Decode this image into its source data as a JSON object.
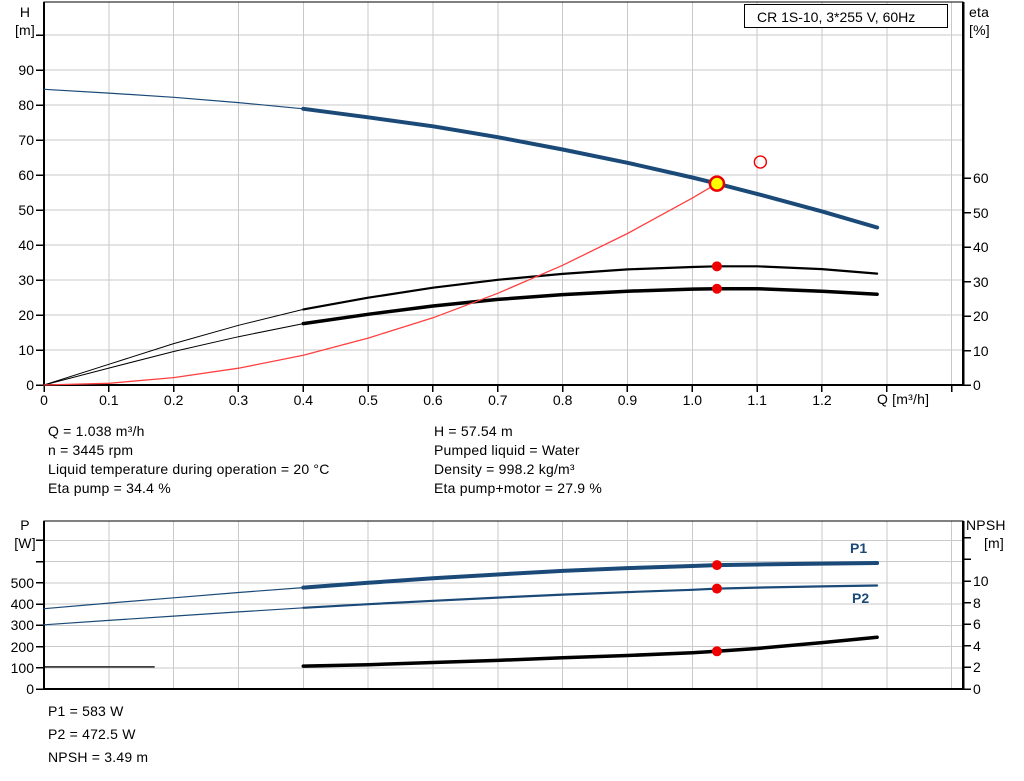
{
  "title_box": {
    "label": "CR 1S-10, 3*255 V, 60Hz"
  },
  "top_chart": {
    "y_left_name": "H",
    "y_left_unit": "[m]",
    "y_right_name": "eta",
    "y_right_unit": "[%]",
    "x_unit_label": "Q [m³/h]"
  },
  "bottom_chart": {
    "y_left_name": "P",
    "y_left_unit": "[W]",
    "y_right_name": "NPSH",
    "y_right_unit": "[m]",
    "p1_label": "P1",
    "p2_label": "P2"
  },
  "info": {
    "q": "Q = 1.038 m³/h",
    "n": "n = 3445 rpm",
    "liquid_temp": "Liquid temperature during operation = 20 °C",
    "eta_pump": "Eta pump = 34.4 %",
    "h": "H = 57.54 m",
    "pumped_liquid": "Pumped liquid = Water",
    "density": "Density = 998.2 kg/m³",
    "eta_pump_motor": "Eta pump+motor = 27.9 %"
  },
  "power_info": {
    "p1": "P1 = 583 W",
    "p2": "P2 = 472.5 W",
    "npsh": "NPSH = 3.49 m"
  },
  "colors": {
    "curve_blue": "#1b4a78",
    "curve_black": "#000000",
    "curve_red": "#ff4040",
    "marker_red": "#ee0000",
    "marker_yellow": "#ffff00",
    "grid": "#c9c9c9",
    "text": "#000000"
  },
  "chart_data": [
    {
      "type": "line",
      "name": "head-efficiency-chart",
      "title": "CR 1S-10, 3*255 V, 60Hz",
      "xlabel": "Q [m³/h]",
      "x_range": [
        0,
        1.417
      ],
      "grid": true,
      "x_ticks": [
        {
          "v": 0,
          "l": "0"
        },
        {
          "v": 0.1,
          "l": "0.1"
        },
        {
          "v": 0.2,
          "l": "0.2"
        },
        {
          "v": 0.3,
          "l": "0.3"
        },
        {
          "v": 0.4,
          "l": "0.4"
        },
        {
          "v": 0.5,
          "l": "0.5"
        },
        {
          "v": 0.6,
          "l": "0.6"
        },
        {
          "v": 0.7,
          "l": "0.7"
        },
        {
          "v": 0.8,
          "l": "0.8"
        },
        {
          "v": 0.9,
          "l": "0.9"
        },
        {
          "v": 1.0,
          "l": "1.0"
        },
        {
          "v": 1.1,
          "l": "1.1"
        },
        {
          "v": 1.2,
          "l": "1.2"
        },
        {
          "v": 1.3,
          "l": ""
        },
        {
          "v": 1.4,
          "l": ""
        }
      ],
      "y_left": {
        "label": "H [m]",
        "range": [
          0,
          107.7
        ],
        "ticks": [
          {
            "v": 0,
            "l": "0"
          },
          {
            "v": 10,
            "l": "10"
          },
          {
            "v": 20,
            "l": "20"
          },
          {
            "v": 30,
            "l": "30"
          },
          {
            "v": 40,
            "l": "40"
          },
          {
            "v": 50,
            "l": "50"
          },
          {
            "v": 60,
            "l": "60"
          },
          {
            "v": 70,
            "l": "70"
          },
          {
            "v": 80,
            "l": "80"
          },
          {
            "v": 90,
            "l": "90"
          },
          {
            "v": 100,
            "l": ""
          }
        ]
      },
      "y_right": {
        "label": "eta [%]",
        "range": [
          0,
          111
        ],
        "ticks": [
          {
            "v": 0,
            "l": "0"
          },
          {
            "v": 10,
            "l": "10"
          },
          {
            "v": 20,
            "l": "20"
          },
          {
            "v": 30,
            "l": "30"
          },
          {
            "v": 40,
            "l": "40"
          },
          {
            "v": 50,
            "l": "50"
          },
          {
            "v": 60,
            "l": "60"
          }
        ]
      },
      "series": [
        {
          "name": "head-curve-extension",
          "axis": "left",
          "color": "blue",
          "width": 1.2,
          "points": [
            [
              0,
              84.5
            ],
            [
              0.1,
              83.4
            ],
            [
              0.2,
              82.2
            ],
            [
              0.3,
              80.7
            ],
            [
              0.4,
              78.9
            ]
          ]
        },
        {
          "name": "head-curve",
          "axis": "left",
          "color": "blue",
          "width": 4,
          "points": [
            [
              0.4,
              78.9
            ],
            [
              0.5,
              76.5
            ],
            [
              0.6,
              73.9
            ],
            [
              0.7,
              70.8
            ],
            [
              0.8,
              67.3
            ],
            [
              0.9,
              63.5
            ],
            [
              1.0,
              59.3
            ],
            [
              1.038,
              57.54
            ],
            [
              1.1,
              54.6
            ],
            [
              1.2,
              49.6
            ],
            [
              1.285,
              45.0
            ]
          ]
        },
        {
          "name": "eta-pump-curve-extension",
          "axis": "right",
          "color": "black",
          "width": 1,
          "points": [
            [
              0,
              0
            ],
            [
              0.1,
              6.0
            ],
            [
              0.2,
              12.0
            ],
            [
              0.3,
              17.3
            ],
            [
              0.4,
              21.9
            ]
          ]
        },
        {
          "name": "eta-pump-curve",
          "axis": "right",
          "color": "black",
          "width": 2.2,
          "points": [
            [
              0.4,
              21.9
            ],
            [
              0.5,
              25.3
            ],
            [
              0.6,
              28.2
            ],
            [
              0.7,
              30.5
            ],
            [
              0.8,
              32.2
            ],
            [
              0.9,
              33.5
            ],
            [
              1.0,
              34.2
            ],
            [
              1.038,
              34.4
            ],
            [
              1.1,
              34.4
            ],
            [
              1.2,
              33.6
            ],
            [
              1.285,
              32.3
            ]
          ]
        },
        {
          "name": "eta-pump-motor-curve-extension",
          "axis": "right",
          "color": "black",
          "width": 1,
          "points": [
            [
              0,
              0
            ],
            [
              0.1,
              4.9
            ],
            [
              0.2,
              9.7
            ],
            [
              0.3,
              14.0
            ],
            [
              0.4,
              17.8
            ]
          ]
        },
        {
          "name": "eta-pump-motor-curve",
          "axis": "right",
          "color": "black",
          "width": 3.5,
          "points": [
            [
              0.4,
              17.8
            ],
            [
              0.5,
              20.5
            ],
            [
              0.6,
              22.9
            ],
            [
              0.7,
              24.8
            ],
            [
              0.8,
              26.2
            ],
            [
              0.9,
              27.2
            ],
            [
              1.0,
              27.8
            ],
            [
              1.038,
              27.9
            ],
            [
              1.1,
              27.9
            ],
            [
              1.2,
              27.2
            ],
            [
              1.285,
              26.3
            ]
          ]
        },
        {
          "name": "system-curve",
          "axis": "left",
          "color": "red",
          "width": 1.3,
          "points": [
            [
              0,
              0
            ],
            [
              0.1,
              0.5
            ],
            [
              0.2,
              2.1
            ],
            [
              0.3,
              4.8
            ],
            [
              0.4,
              8.5
            ],
            [
              0.5,
              13.4
            ],
            [
              0.6,
              19.2
            ],
            [
              0.7,
              26.2
            ],
            [
              0.8,
              34.2
            ],
            [
              0.9,
              43.3
            ],
            [
              1.0,
              53.4
            ],
            [
              1.038,
              57.54
            ]
          ]
        }
      ],
      "markers": [
        {
          "type": "duty-point",
          "axis": "left",
          "q": 1.038,
          "v": 57.54
        },
        {
          "type": "rated-ring",
          "axis": "left",
          "q": 1.105,
          "v": 63.7
        },
        {
          "type": "dot",
          "axis": "right",
          "q": 1.038,
          "v": 34.4
        },
        {
          "type": "dot",
          "axis": "right",
          "q": 1.038,
          "v": 27.9
        }
      ]
    },
    {
      "type": "line",
      "name": "power-npsh-chart",
      "xlabel": "Q [m³/h]",
      "x_range": [
        0,
        1.417
      ],
      "grid": true,
      "x_ticks": [
        {
          "v": 0,
          "l": ""
        },
        {
          "v": 0.1,
          "l": ""
        },
        {
          "v": 0.2,
          "l": ""
        },
        {
          "v": 0.3,
          "l": ""
        },
        {
          "v": 0.4,
          "l": ""
        },
        {
          "v": 0.5,
          "l": ""
        },
        {
          "v": 0.6,
          "l": ""
        },
        {
          "v": 0.7,
          "l": ""
        },
        {
          "v": 0.8,
          "l": ""
        },
        {
          "v": 0.9,
          "l": ""
        },
        {
          "v": 1.0,
          "l": ""
        },
        {
          "v": 1.1,
          "l": ""
        },
        {
          "v": 1.2,
          "l": ""
        },
        {
          "v": 1.3,
          "l": ""
        },
        {
          "v": 1.4,
          "l": ""
        }
      ],
      "y_left": {
        "label": "P [W]",
        "range": [
          0,
          790
        ],
        "ticks": [
          {
            "v": 0,
            "l": "0"
          },
          {
            "v": 100,
            "l": "100"
          },
          {
            "v": 200,
            "l": "200"
          },
          {
            "v": 300,
            "l": "300"
          },
          {
            "v": 400,
            "l": "400"
          },
          {
            "v": 500,
            "l": "500"
          },
          {
            "v": 600,
            "l": ""
          },
          {
            "v": 700,
            "l": ""
          }
        ]
      },
      "y_right": {
        "label": "NPSH [m]",
        "range": [
          0,
          15.6
        ],
        "ticks": [
          {
            "v": 0,
            "l": "0"
          },
          {
            "v": 2,
            "l": "2"
          },
          {
            "v": 4,
            "l": "4"
          },
          {
            "v": 6,
            "l": "6"
          },
          {
            "v": 8,
            "l": "8"
          },
          {
            "v": 10,
            "l": "10"
          },
          {
            "v": 12,
            "l": ""
          },
          {
            "v": 14,
            "l": ""
          }
        ]
      },
      "series": [
        {
          "name": "p1-curve-extension",
          "axis": "left",
          "color": "blue",
          "width": 1.2,
          "points": [
            [
              0,
              378
            ],
            [
              0.1,
              404
            ],
            [
              0.2,
              429
            ],
            [
              0.3,
              454
            ],
            [
              0.4,
              477
            ]
          ]
        },
        {
          "name": "p1-curve",
          "axis": "left",
          "color": "blue",
          "width": 4,
          "points": [
            [
              0.4,
              477
            ],
            [
              0.5,
              500
            ],
            [
              0.6,
              521
            ],
            [
              0.7,
              539
            ],
            [
              0.8,
              556
            ],
            [
              0.9,
              569
            ],
            [
              1.0,
              579
            ],
            [
              1.038,
              583
            ],
            [
              1.1,
              586
            ],
            [
              1.2,
              590
            ],
            [
              1.285,
              593
            ]
          ]
        },
        {
          "name": "p2-curve-extension",
          "axis": "left",
          "color": "blue",
          "width": 1.2,
          "points": [
            [
              0,
              302
            ],
            [
              0.1,
              323
            ],
            [
              0.2,
              343
            ],
            [
              0.3,
              363
            ],
            [
              0.4,
              382
            ]
          ]
        },
        {
          "name": "p2-curve",
          "axis": "left",
          "color": "blue",
          "width": 2.2,
          "points": [
            [
              0.4,
              382
            ],
            [
              0.5,
              399
            ],
            [
              0.6,
              415
            ],
            [
              0.7,
              430
            ],
            [
              0.8,
              444
            ],
            [
              0.9,
              456
            ],
            [
              1.0,
              467
            ],
            [
              1.038,
              472.5
            ],
            [
              1.1,
              477
            ],
            [
              1.2,
              483
            ],
            [
              1.285,
              487
            ]
          ]
        },
        {
          "name": "npsh-curve-extension",
          "axis": "right",
          "color": "black",
          "width": 1.2,
          "points": [
            [
              0,
              2.05
            ],
            [
              0.17,
              2.05
            ]
          ]
        },
        {
          "name": "npsh-curve",
          "axis": "right",
          "color": "black",
          "width": 3.5,
          "points": [
            [
              0.4,
              2.12
            ],
            [
              0.5,
              2.25
            ],
            [
              0.6,
              2.45
            ],
            [
              0.7,
              2.65
            ],
            [
              0.8,
              2.9
            ],
            [
              0.9,
              3.1
            ],
            [
              1.0,
              3.35
            ],
            [
              1.038,
              3.49
            ],
            [
              1.1,
              3.75
            ],
            [
              1.2,
              4.3
            ],
            [
              1.285,
              4.8
            ]
          ]
        }
      ],
      "markers": [
        {
          "type": "dot",
          "axis": "left",
          "q": 1.038,
          "v": 583
        },
        {
          "type": "dot",
          "axis": "left",
          "q": 1.038,
          "v": 472.5
        },
        {
          "type": "dot",
          "axis": "right",
          "q": 1.038,
          "v": 3.49
        }
      ]
    }
  ]
}
